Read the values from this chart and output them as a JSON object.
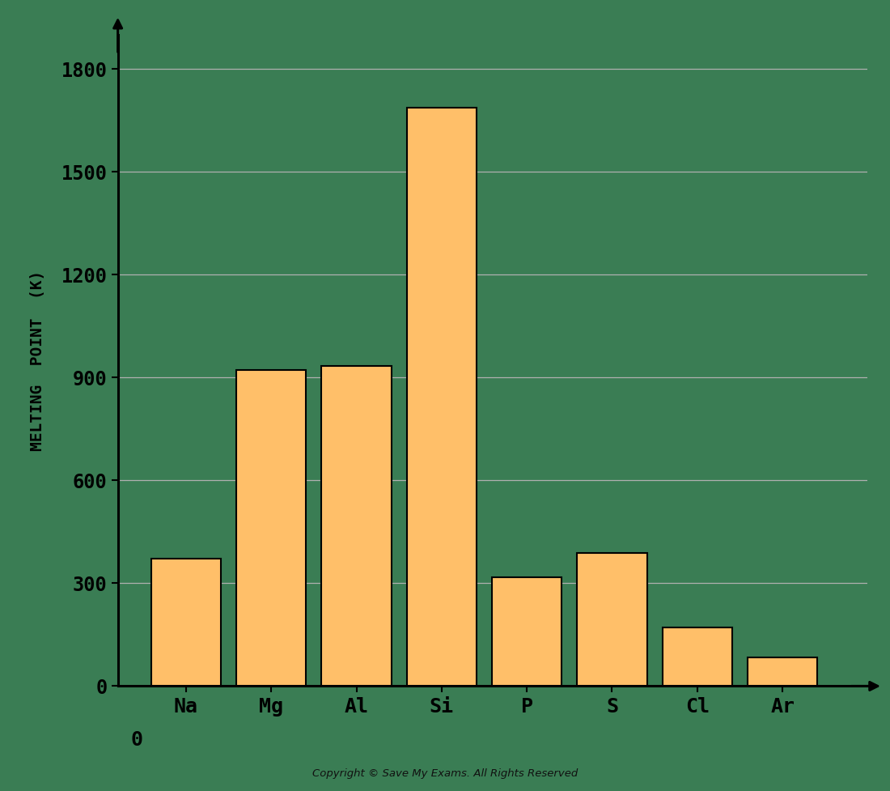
{
  "categories": [
    "Na",
    "Mg",
    "Al",
    "Si",
    "P",
    "S",
    "Cl",
    "Ar"
  ],
  "values": [
    371,
    923,
    933,
    1687,
    317,
    388,
    172,
    84
  ],
  "bar_color": "#FFBF69",
  "bar_edgecolor": "#000000",
  "background_color": "#3a7d54",
  "ylabel": "MELTING  POINT  (K)",
  "ylim": [
    0,
    1900
  ],
  "yticks": [
    0,
    300,
    600,
    900,
    1200,
    1500,
    1800
  ],
  "grid_color": "#b0b0b0",
  "axis_color": "#000000",
  "tick_label_color": "#000000",
  "ylabel_color": "#000000",
  "ylabel_fontsize": 14,
  "ytick_fontsize": 17,
  "xtick_fontsize": 18,
  "copyright": "Copyright © Save My Exams. All Rights Reserved"
}
